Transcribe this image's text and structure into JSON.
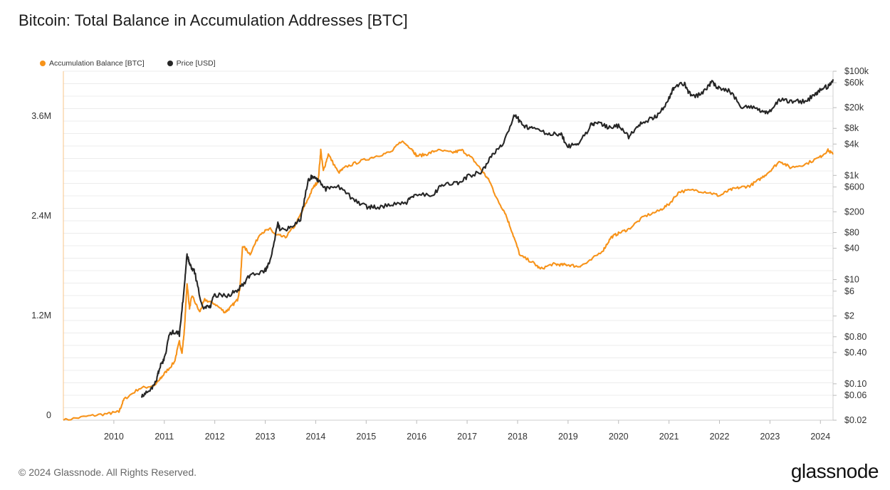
{
  "title": "Bitcoin: Total Balance in Accumulation Addresses [BTC]",
  "footer": "© 2024 Glassnode. All Rights Reserved.",
  "logo": "glassnode",
  "colors": {
    "balance": "#f7931a",
    "price": "#262626",
    "grid": "#ececec"
  },
  "chart_data": {
    "type": "line",
    "grid": true,
    "legend_position": "top-left",
    "x": {
      "range": [
        2009.0,
        2024.25
      ],
      "tick_labels": [
        "2010",
        "2011",
        "2012",
        "2013",
        "2014",
        "2015",
        "2016",
        "2017",
        "2018",
        "2019",
        "2020",
        "2021",
        "2022",
        "2023",
        "2024"
      ]
    },
    "y_left": {
      "range": [
        0,
        4200000
      ],
      "tick_values": [
        0,
        1200000,
        2400000,
        3600000
      ],
      "tick_labels": [
        "0",
        "1.2M",
        "2.4M",
        "3.6M"
      ]
    },
    "y_right": {
      "scale": "log",
      "range": [
        0.02,
        100000
      ],
      "tick_values": [
        100000,
        60000,
        20000,
        8000,
        4000,
        1000,
        600,
        200,
        80,
        40,
        10,
        6,
        2,
        0.8,
        0.4,
        0.1,
        0.06,
        0.02
      ],
      "tick_labels": [
        "$100k",
        "$60k",
        "$20k",
        "$8k",
        "$4k",
        "$1k",
        "$600",
        "$200",
        "$80",
        "$40",
        "$10",
        "$6",
        "$2",
        "$0.80",
        "$0.40",
        "$0.10",
        "$0.06",
        "$0.02"
      ]
    },
    "series": [
      {
        "name": "Accumulation Balance [BTC]",
        "axis": "left",
        "color": "#f7931a",
        "points": [
          [
            2009.0,
            0
          ],
          [
            2009.5,
            50000
          ],
          [
            2009.9,
            80000
          ],
          [
            2010.1,
            100000
          ],
          [
            2010.2,
            250000
          ],
          [
            2010.5,
            380000
          ],
          [
            2010.8,
            420000
          ],
          [
            2010.9,
            480000
          ],
          [
            2011.0,
            560000
          ],
          [
            2011.2,
            700000
          ],
          [
            2011.3,
            950000
          ],
          [
            2011.35,
            800000
          ],
          [
            2011.4,
            1100000
          ],
          [
            2011.45,
            1650000
          ],
          [
            2011.5,
            1350000
          ],
          [
            2011.55,
            1500000
          ],
          [
            2011.7,
            1300000
          ],
          [
            2011.8,
            1450000
          ],
          [
            2012.0,
            1400000
          ],
          [
            2012.2,
            1300000
          ],
          [
            2012.3,
            1350000
          ],
          [
            2012.45,
            1450000
          ],
          [
            2012.5,
            1600000
          ],
          [
            2012.55,
            2100000
          ],
          [
            2012.7,
            2000000
          ],
          [
            2012.9,
            2250000
          ],
          [
            2013.1,
            2300000
          ],
          [
            2013.2,
            2230000
          ],
          [
            2013.4,
            2200000
          ],
          [
            2013.6,
            2350000
          ],
          [
            2013.8,
            2600000
          ],
          [
            2013.95,
            2800000
          ],
          [
            2014.05,
            2880000
          ],
          [
            2014.1,
            3250000
          ],
          [
            2014.15,
            3000000
          ],
          [
            2014.25,
            3200000
          ],
          [
            2014.45,
            2980000
          ],
          [
            2014.6,
            3050000
          ],
          [
            2014.9,
            3120000
          ],
          [
            2015.2,
            3180000
          ],
          [
            2015.5,
            3230000
          ],
          [
            2015.7,
            3360000
          ],
          [
            2015.9,
            3270000
          ],
          [
            2016.0,
            3180000
          ],
          [
            2016.2,
            3200000
          ],
          [
            2016.4,
            3250000
          ],
          [
            2016.7,
            3220000
          ],
          [
            2016.9,
            3250000
          ],
          [
            2017.1,
            3150000
          ],
          [
            2017.3,
            3000000
          ],
          [
            2017.45,
            2870000
          ],
          [
            2017.6,
            2650000
          ],
          [
            2017.75,
            2500000
          ],
          [
            2017.9,
            2250000
          ],
          [
            2018.05,
            1980000
          ],
          [
            2018.3,
            1900000
          ],
          [
            2018.45,
            1820000
          ],
          [
            2018.7,
            1880000
          ],
          [
            2018.85,
            1870000
          ],
          [
            2019.0,
            1870000
          ],
          [
            2019.2,
            1850000
          ],
          [
            2019.4,
            1900000
          ],
          [
            2019.7,
            2050000
          ],
          [
            2019.85,
            2200000
          ],
          [
            2020.0,
            2250000
          ],
          [
            2020.2,
            2300000
          ],
          [
            2020.5,
            2450000
          ],
          [
            2020.8,
            2520000
          ],
          [
            2021.0,
            2600000
          ],
          [
            2021.2,
            2750000
          ],
          [
            2021.5,
            2770000
          ],
          [
            2021.8,
            2740000
          ],
          [
            2022.0,
            2700000
          ],
          [
            2022.2,
            2770000
          ],
          [
            2022.4,
            2800000
          ],
          [
            2022.6,
            2820000
          ],
          [
            2022.8,
            2900000
          ],
          [
            2023.0,
            3000000
          ],
          [
            2023.2,
            3120000
          ],
          [
            2023.4,
            3040000
          ],
          [
            2023.7,
            3080000
          ],
          [
            2024.0,
            3170000
          ],
          [
            2024.15,
            3250000
          ],
          [
            2024.25,
            3200000
          ]
        ]
      },
      {
        "name": "Price [USD]",
        "axis": "right",
        "color": "#262626",
        "points": [
          [
            2010.55,
            0.06
          ],
          [
            2010.7,
            0.07
          ],
          [
            2010.85,
            0.12
          ],
          [
            2010.9,
            0.2
          ],
          [
            2011.0,
            0.3
          ],
          [
            2011.1,
            0.9
          ],
          [
            2011.2,
            1.0
          ],
          [
            2011.3,
            0.9
          ],
          [
            2011.4,
            8
          ],
          [
            2011.45,
            30
          ],
          [
            2011.5,
            20
          ],
          [
            2011.6,
            14
          ],
          [
            2011.75,
            3
          ],
          [
            2011.9,
            3
          ],
          [
            2012.0,
            5
          ],
          [
            2012.3,
            5
          ],
          [
            2012.5,
            7
          ],
          [
            2012.7,
            12
          ],
          [
            2013.0,
            15
          ],
          [
            2013.1,
            25
          ],
          [
            2013.25,
            120
          ],
          [
            2013.3,
            90
          ],
          [
            2013.5,
            100
          ],
          [
            2013.7,
            140
          ],
          [
            2013.85,
            800
          ],
          [
            2013.95,
            1000
          ],
          [
            2014.05,
            800
          ],
          [
            2014.2,
            550
          ],
          [
            2014.45,
            600
          ],
          [
            2014.75,
            350
          ],
          [
            2015.0,
            250
          ],
          [
            2015.2,
            240
          ],
          [
            2015.5,
            280
          ],
          [
            2015.8,
            300
          ],
          [
            2015.95,
            430
          ],
          [
            2016.3,
            420
          ],
          [
            2016.5,
            650
          ],
          [
            2016.8,
            700
          ],
          [
            2017.0,
            950
          ],
          [
            2017.3,
            1200
          ],
          [
            2017.5,
            2500
          ],
          [
            2017.7,
            4000
          ],
          [
            2017.95,
            15000
          ],
          [
            2018.1,
            9000
          ],
          [
            2018.3,
            8000
          ],
          [
            2018.6,
            6500
          ],
          [
            2018.85,
            6300
          ],
          [
            2019.0,
            3600
          ],
          [
            2019.2,
            3900
          ],
          [
            2019.45,
            9000
          ],
          [
            2019.6,
            11000
          ],
          [
            2019.8,
            8000
          ],
          [
            2020.0,
            9000
          ],
          [
            2020.2,
            5500
          ],
          [
            2020.4,
            9500
          ],
          [
            2020.6,
            11500
          ],
          [
            2020.8,
            15000
          ],
          [
            2021.0,
            30000
          ],
          [
            2021.1,
            50000
          ],
          [
            2021.3,
            58000
          ],
          [
            2021.4,
            38000
          ],
          [
            2021.55,
            33000
          ],
          [
            2021.75,
            47000
          ],
          [
            2021.85,
            64000
          ],
          [
            2022.0,
            45000
          ],
          [
            2022.2,
            42000
          ],
          [
            2022.45,
            20000
          ],
          [
            2022.7,
            20000
          ],
          [
            2022.85,
            16500
          ],
          [
            2023.0,
            17000
          ],
          [
            2023.2,
            28000
          ],
          [
            2023.45,
            27000
          ],
          [
            2023.7,
            26000
          ],
          [
            2023.9,
            37000
          ],
          [
            2024.0,
            43000
          ],
          [
            2024.15,
            52000
          ],
          [
            2024.25,
            70000
          ]
        ]
      }
    ]
  }
}
